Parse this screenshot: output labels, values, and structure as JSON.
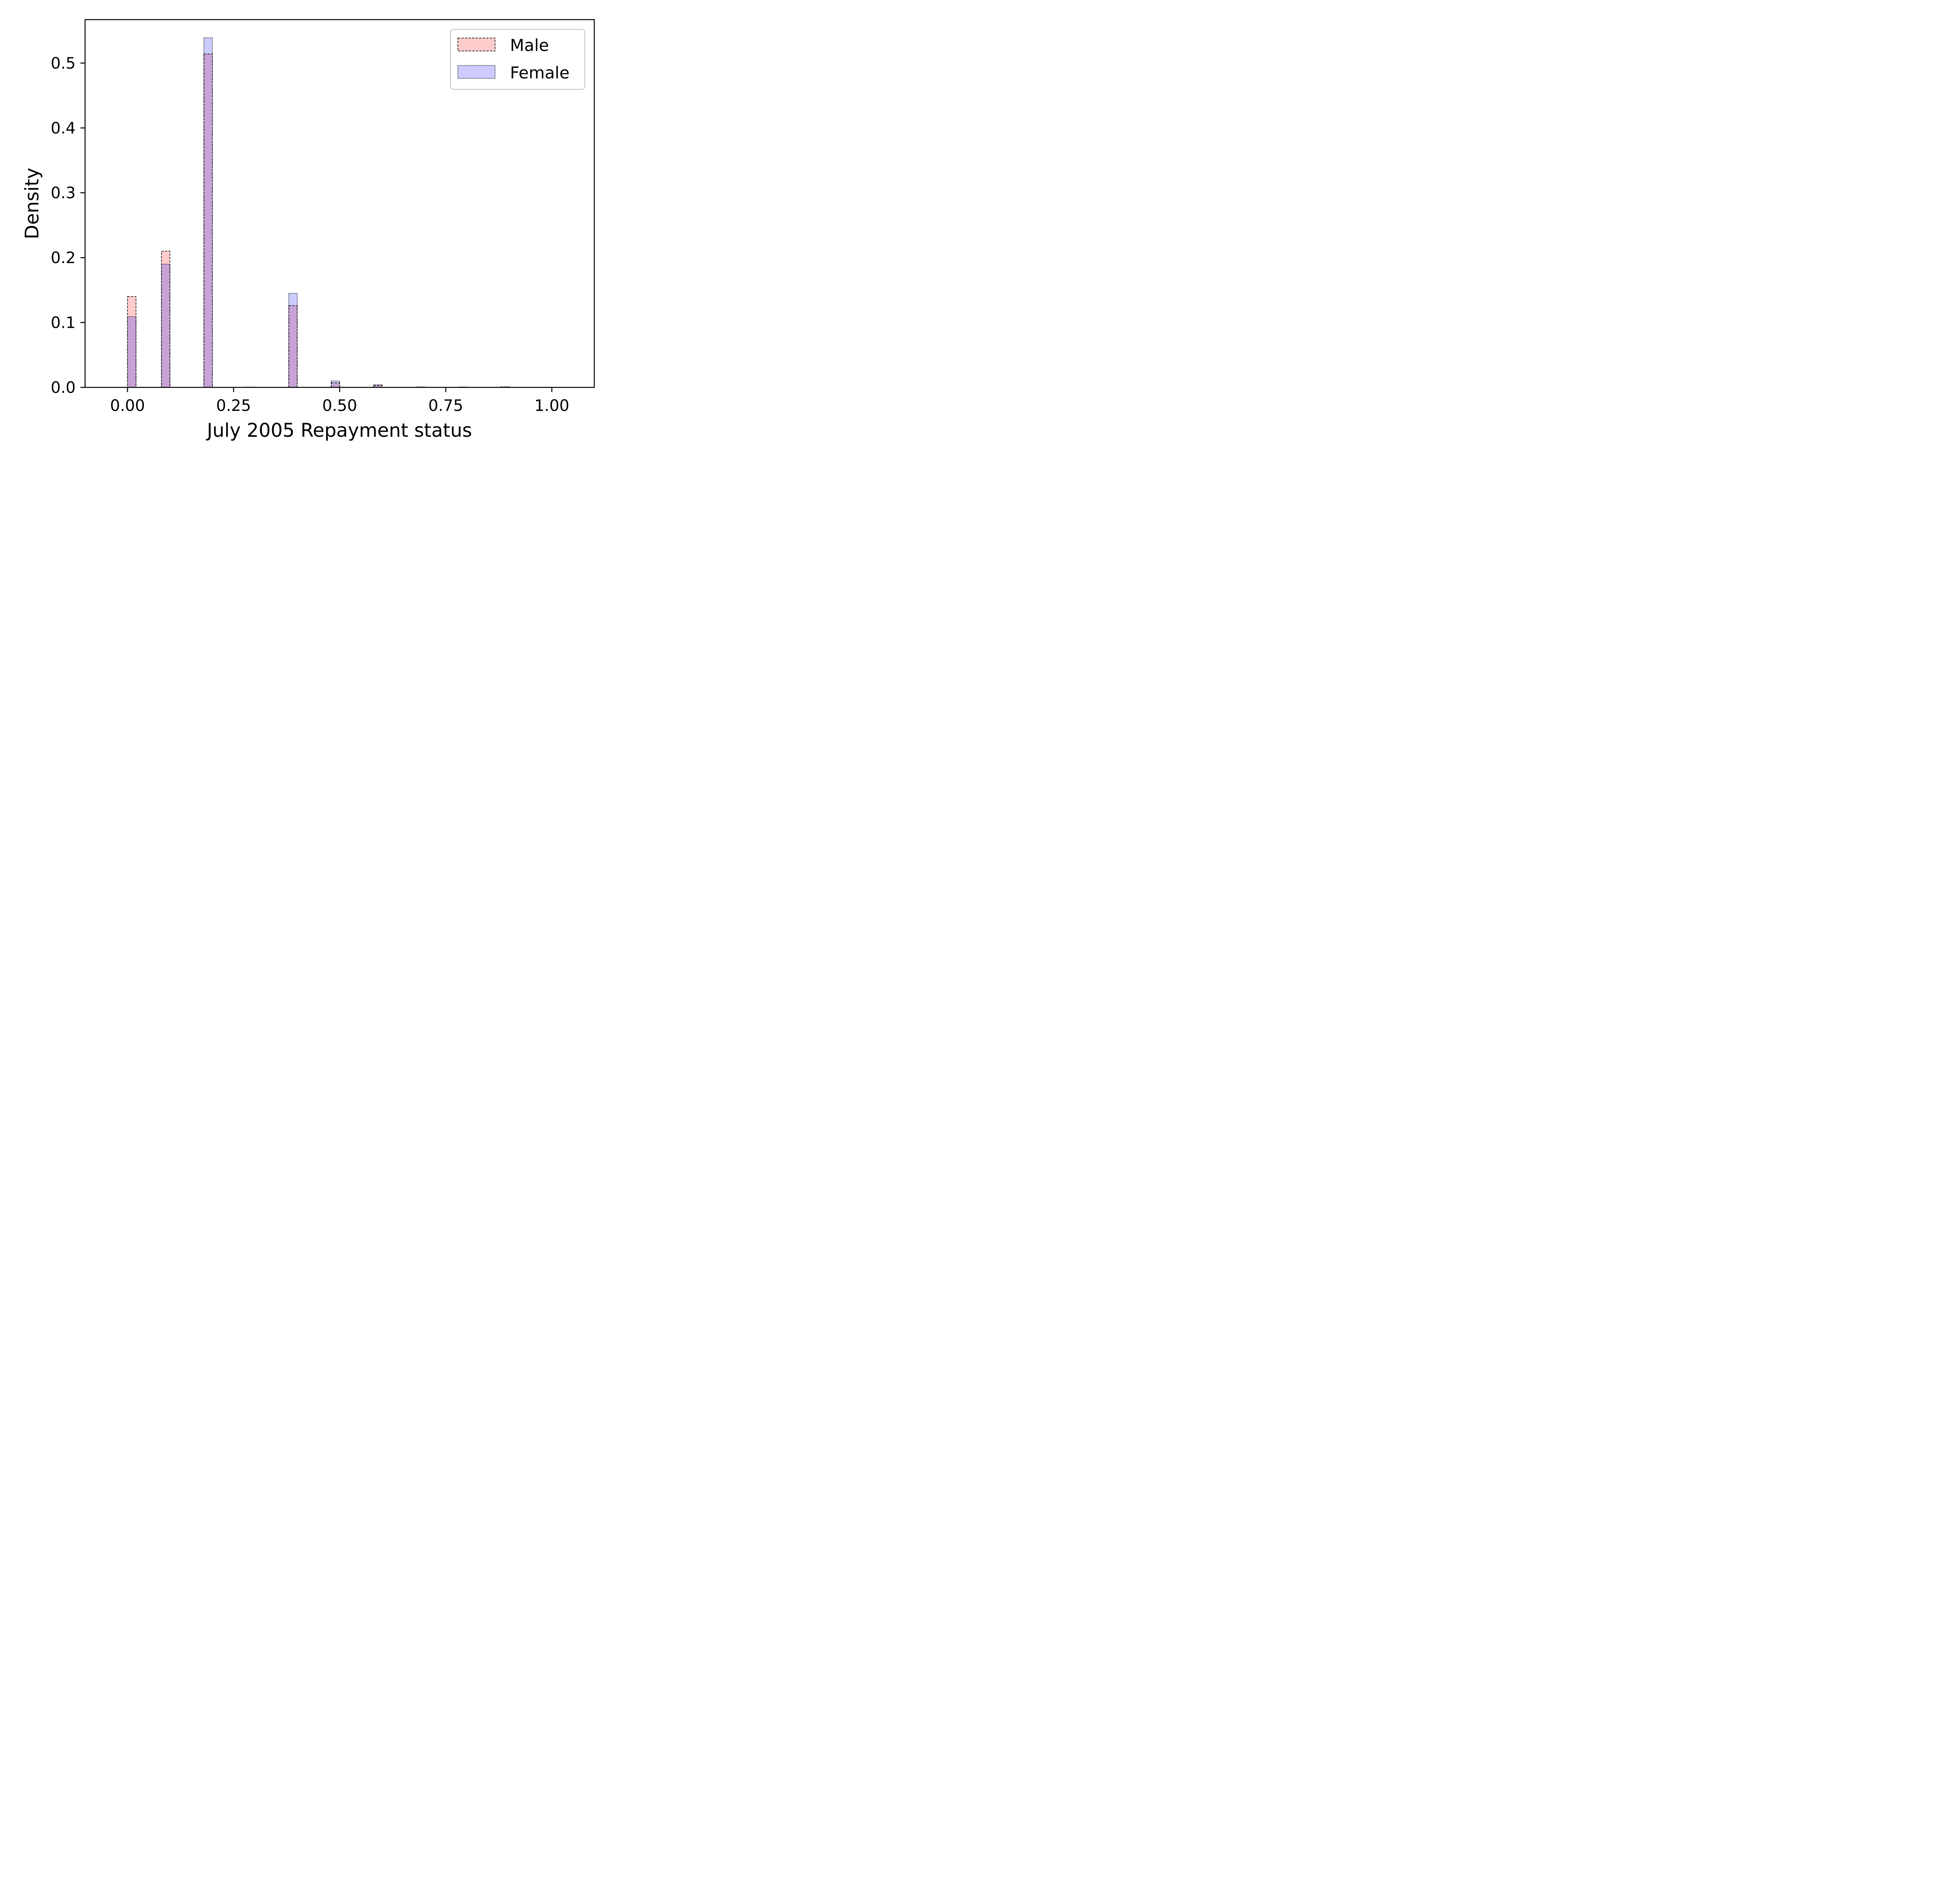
{
  "chart_data": {
    "type": "bar",
    "subtype": "overlapping-histogram",
    "xlabel": "July 2005 Repayment status",
    "ylabel": "Density",
    "xlim": [
      -0.1,
      1.1
    ],
    "ylim": [
      0,
      0.567
    ],
    "xticks": [
      0.0,
      0.25,
      0.5,
      0.75,
      1.0
    ],
    "xtick_labels": [
      "0.00",
      "0.25",
      "0.50",
      "0.75",
      "1.00"
    ],
    "yticks": [
      0.0,
      0.1,
      0.2,
      0.3,
      0.4,
      0.5
    ],
    "ytick_labels": [
      "0.0",
      "0.1",
      "0.2",
      "0.3",
      "0.4",
      "0.5"
    ],
    "bin_width": 0.02,
    "bin_starts": [
      0.0,
      0.08,
      0.18,
      0.28,
      0.38,
      0.48,
      0.58,
      0.68,
      0.78,
      0.88
    ],
    "legend_position": "top-right",
    "grid": false,
    "overlap_color": "#c8a2d6",
    "series": [
      {
        "name": "Male",
        "color": "#ffcccc",
        "edge_style": "dashed",
        "values": [
          0.14,
          0.21,
          0.514,
          0.0004,
          0.126,
          0.007,
          0.003,
          0.0006,
          0.0005,
          0.0006
        ]
      },
      {
        "name": "Female",
        "color": "#ccccff",
        "edge_style": "dotted",
        "values": [
          0.109,
          0.19,
          0.539,
          0.0003,
          0.145,
          0.01,
          0.004,
          0.0005,
          0.0004,
          0.0008
        ]
      }
    ]
  }
}
